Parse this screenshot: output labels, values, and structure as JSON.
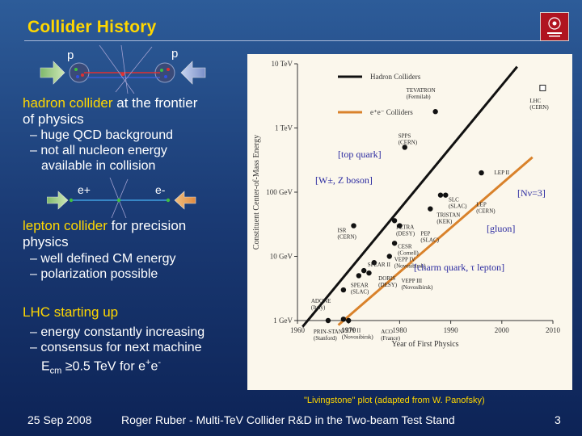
{
  "slide": {
    "title": "Collider History",
    "hadron_section": {
      "particle_left": "p",
      "particle_right": "p",
      "heading_highlight": "hadron collider",
      "heading_rest": " at the frontier",
      "heading_line2": "of physics",
      "bullets": [
        "– huge QCD background",
        "– not all nucleon energy",
        "available in collision"
      ]
    },
    "lepton_section": {
      "particle_left": "e+",
      "particle_right": "e-",
      "heading_highlight": "lepton collider",
      "heading_rest": " for precision",
      "heading_line2": "physics",
      "bullets": [
        "– well defined CM energy",
        "– polarization possible"
      ]
    },
    "lhc_section": {
      "heading": "LHC starting up",
      "bullets": [
        "– energy constantly increasing",
        "– consensus for next machine",
        "E",
        "cm",
        " ≥0.5 TeV for e",
        "+",
        "e",
        "-"
      ]
    },
    "caption": "\"Livingstone\" plot  (adapted from W. Panofsky)",
    "footer": {
      "date": "25 Sep 2008",
      "center": "Roger Ruber - Multi-TeV Collider R&D in the Two-beam Test Stand",
      "page": "3"
    }
  },
  "chart_data": {
    "type": "scatter",
    "xlabel": "Year of First Physics",
    "ylabel": "Constituent Center-of-Mass Energy",
    "x_ticks": [
      "1960",
      "1970",
      "1980",
      "1990",
      "2000",
      "2010"
    ],
    "y_ticks": [
      "1 GeV",
      "10 GeV",
      "100 GeV",
      "1 TeV",
      "10 TeV"
    ],
    "xlim": [
      1960,
      2010
    ],
    "ylim_gev": [
      1,
      10000
    ],
    "yscale": "log",
    "legend": [
      "Hadron Colliders",
      "e+e- Colliders"
    ],
    "legend_label_hadron": "Hadron Colliders",
    "legend_label_lepton": "e⁺e⁻ Colliders",
    "colors": {
      "hadron": "#111111",
      "lepton": "#d9822b",
      "annotation": "#2a2aa0"
    },
    "trend_lines": [
      {
        "name": "Hadron Colliders",
        "x": [
          1961,
          2003
        ],
        "y_gev": [
          0.8,
          9000
        ]
      },
      {
        "name": "e+e- Colliders",
        "x": [
          1968,
          2006
        ],
        "y_gev": [
          0.85,
          350
        ]
      }
    ],
    "points": [
      {
        "label": "ADONE",
        "sub": "(Italy)",
        "x": 1969,
        "y_gev": 3.0,
        "type": "e+e-"
      },
      {
        "label": "PRIN-STAN",
        "sub": "(Stanford)",
        "x": 1966,
        "y_gev": 1.0,
        "type": "e+e-"
      },
      {
        "label": "VEPP II",
        "sub": "(Novosibirsk)",
        "x": 1969,
        "y_gev": 1.05,
        "type": "e+e-"
      },
      {
        "label": "ACO",
        "sub": "(France)",
        "x": 1970,
        "y_gev": 1.0,
        "type": "e+e-"
      },
      {
        "label": "SPEAR",
        "sub": "(SLAC)",
        "x": 1972,
        "y_gev": 5.0,
        "type": "e+e-"
      },
      {
        "label": "DORIS",
        "sub": "(DESY)",
        "x": 1973,
        "y_gev": 6.0,
        "type": "e+e-"
      },
      {
        "label": "VEPP III",
        "sub": "(Novosibirsk)",
        "x": 1974,
        "y_gev": 5.5,
        "type": "e+e-"
      },
      {
        "label": "SPEAR II",
        "sub": "",
        "x": 1975,
        "y_gev": 8.0,
        "type": "e+e-"
      },
      {
        "label": "VEPP IV",
        "sub": "(Novosibirsk)",
        "x": 1978,
        "y_gev": 10.0,
        "type": "e+e-"
      },
      {
        "label": "CESR",
        "sub": "(Cornell)",
        "x": 1979,
        "y_gev": 16.0,
        "type": "e+e-"
      },
      {
        "label": "ISR",
        "sub": "(CERN)",
        "x": 1971,
        "y_gev": 30.0,
        "type": "hadron"
      },
      {
        "label": "PETRA",
        "sub": "(DESY)",
        "x": 1979,
        "y_gev": 36.0,
        "type": "e+e-"
      },
      {
        "label": "PEP",
        "sub": "(SLAC)",
        "x": 1980,
        "y_gev": 30.0,
        "type": "e+e-"
      },
      {
        "label": "TRISTAN",
        "sub": "(KEK)",
        "x": 1986,
        "y_gev": 55.0,
        "type": "e+e-"
      },
      {
        "label": "SPPS",
        "sub": "(CERN)",
        "x": 1981,
        "y_gev": 500.0,
        "type": "hadron"
      },
      {
        "label": "SLC",
        "sub": "(SLAC)",
        "x": 1988,
        "y_gev": 90.0,
        "type": "e+e-"
      },
      {
        "label": "LEP",
        "sub": "(CERN)",
        "x": 1989,
        "y_gev": 90.0,
        "type": "e+e-"
      },
      {
        "label": "TEVATRON",
        "sub": "(Fermilab)",
        "x": 1987,
        "y_gev": 1800.0,
        "type": "hadron"
      },
      {
        "label": "LEP II",
        "sub": "",
        "x": 1996,
        "y_gev": 200.0,
        "type": "e+e-"
      },
      {
        "label": "LHC",
        "sub": "(CERN)",
        "x": 2008,
        "y_gev": 14000.0,
        "type": "hadron"
      }
    ],
    "annotations": [
      {
        "text": "[top quark]",
        "key": "top"
      },
      {
        "text": "[W±, Z boson]",
        "key": "wz"
      },
      {
        "text": "[Nν=3]",
        "key": "nnu"
      },
      {
        "text": "[gluon]",
        "key": "gluon"
      },
      {
        "text": "[charm quark, τ lepton]",
        "key": "charm"
      }
    ]
  }
}
